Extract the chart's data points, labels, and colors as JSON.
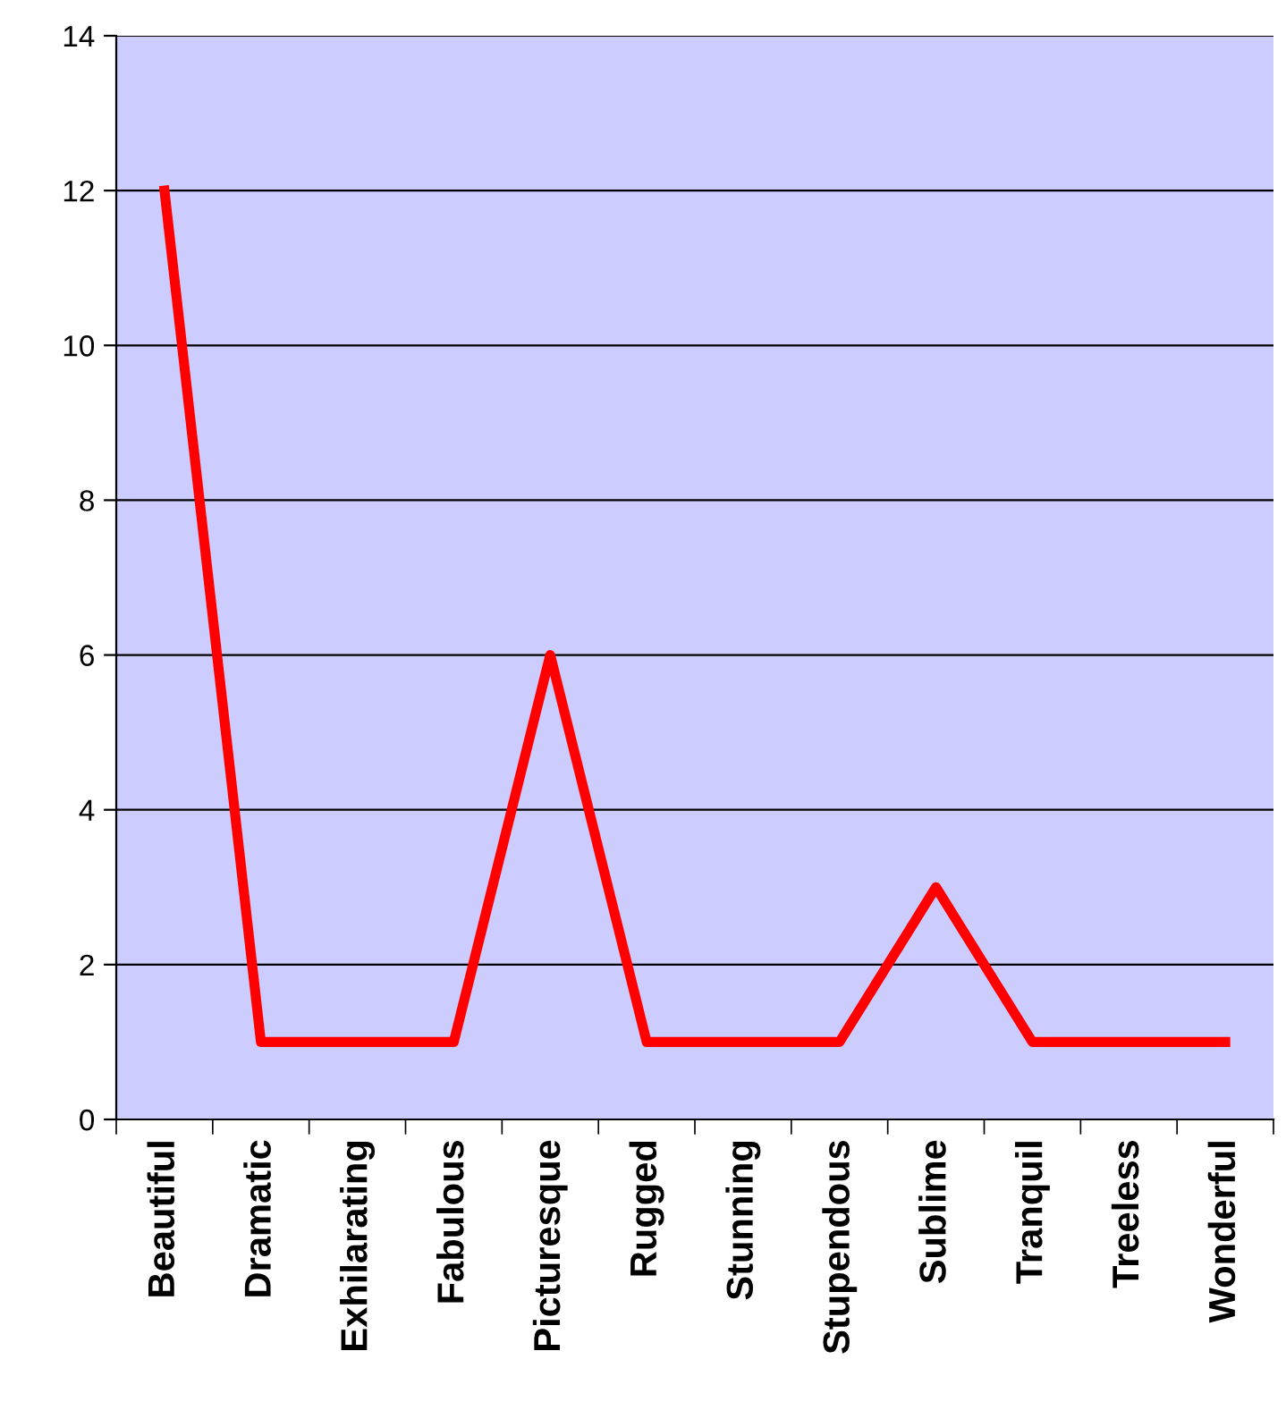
{
  "chart_data": {
    "type": "line",
    "categories": [
      "Beautiful",
      "Dramatic",
      "Exhilarating",
      "Fabulous",
      "Picturesque",
      "Rugged",
      "Stunning",
      "Stupendous",
      "Sublime",
      "Tranquil",
      "Treeless",
      "Wonderful"
    ],
    "series": [
      {
        "color": "#ff0000",
        "values": [
          12,
          1,
          1,
          1,
          6,
          1,
          1,
          1,
          3,
          1,
          1,
          1
        ]
      }
    ],
    "ylim": [
      0,
      14
    ],
    "yticks": [
      0,
      2,
      4,
      6,
      8,
      10,
      12,
      14
    ],
    "grid": "y",
    "legend": false,
    "marker": "none",
    "line_style": "solid"
  }
}
